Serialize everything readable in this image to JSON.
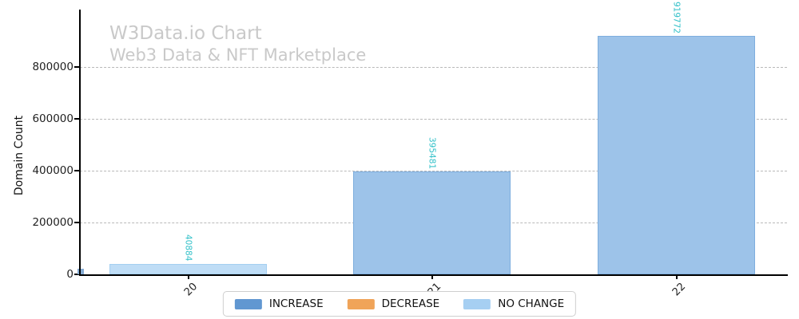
{
  "chart_data": {
    "type": "bar",
    "title": "W3Data.io Chart",
    "subtitle": "Web3 Data & NFT Marketplace",
    "ylabel": "Domain Count",
    "xlabel": "",
    "categories": [
      "20",
      "21",
      "22"
    ],
    "values": [
      40884,
      395481,
      919772
    ],
    "bar_roles": [
      "no_change",
      "increase",
      "increase"
    ],
    "value_labels": [
      "40884",
      "395481",
      "919772"
    ],
    "yticks": [
      0,
      200000,
      400000,
      600000,
      800000
    ],
    "ylim": [
      0,
      1020000
    ],
    "grid": "horizontal dashed",
    "legend_position": "bottom center",
    "legend": [
      {
        "label": "INCREASE",
        "color": "#6197d1"
      },
      {
        "label": "DECREASE",
        "color": "#f0a459"
      },
      {
        "label": "NO CHANGE",
        "color": "#a6cff2"
      }
    ],
    "bar_styles": {
      "increase": {
        "fill": "#9dc3e9",
        "edge": "#7eaede"
      },
      "no_change": {
        "fill": "#bfddf6",
        "edge": "#a4cff1"
      },
      "decrease": {
        "fill": "#f5c491",
        "edge": "#eeab63"
      }
    },
    "origin_mini_bar": {
      "color": "#85abd3"
    },
    "colors": {
      "title": "#c9c9c9",
      "value_label": "#30c0c8",
      "gridline": "#b9b9b9",
      "axis": "#000000"
    }
  }
}
